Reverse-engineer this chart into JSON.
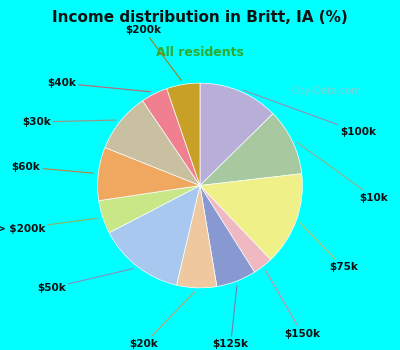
{
  "title": "Income distribution in Britt, IA (%)",
  "subtitle": "All residents",
  "background_color": "#00FFFF",
  "chart_bg_color": "#dff0e8",
  "watermark": "City-Data.com",
  "labels": [
    "$100k",
    "$10k",
    "$75k",
    "$150k",
    "$125k",
    "$20k",
    "$50k",
    "> $200k",
    "$60k",
    "$30k",
    "$40k",
    "$200k"
  ],
  "values": [
    12,
    10,
    14,
    3,
    6,
    6,
    13,
    5,
    8,
    9,
    4,
    5
  ],
  "colors": [
    "#b8aed8",
    "#a8c8a0",
    "#f0f088",
    "#f0b8c0",
    "#8898d0",
    "#f0c8a0",
    "#a8c8f0",
    "#c8e888",
    "#f0a860",
    "#c8c0a0",
    "#f08090",
    "#c8a028"
  ],
  "title_fontsize": 11,
  "subtitle_fontsize": 9,
  "label_fontsize": 7.5
}
